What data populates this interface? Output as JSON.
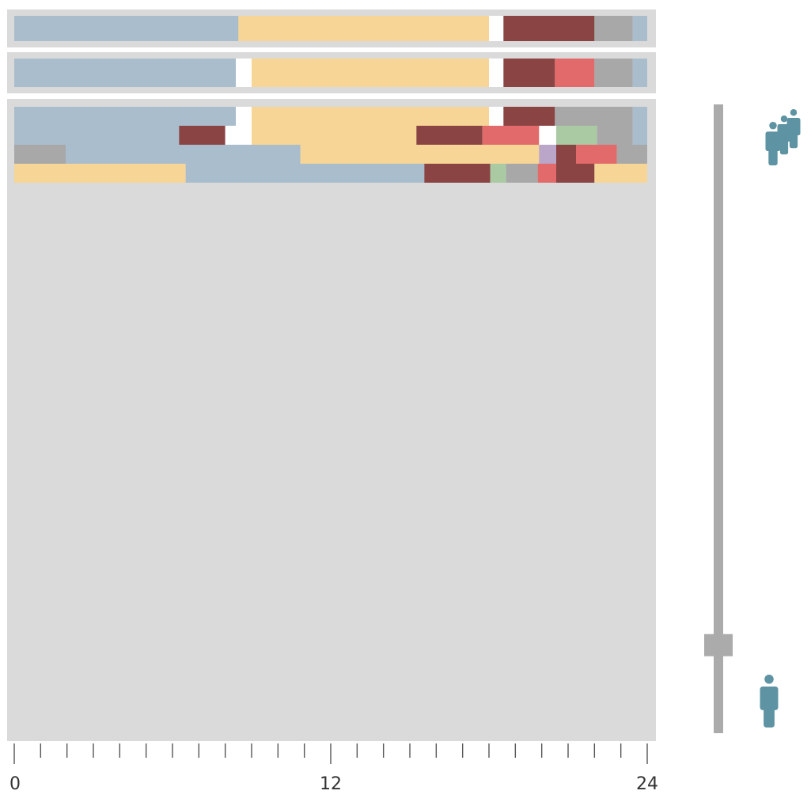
{
  "colors": {
    "blue": "#A9BDCC",
    "yellow": "#F7D596",
    "white": "#FFFFFF",
    "maroon": "#8A4444",
    "gray": "#A8A8A8",
    "red": "#E26A6A",
    "green": "#A9CAA3",
    "purple": "#B9A6C8",
    "panel_border": "#DADADA",
    "panel_bg": "#DADADA",
    "slider_track": "#ABABAB",
    "person_icon": "#5E93A3",
    "axis": "#555555"
  },
  "chart_data": {
    "type": "timeline",
    "xlim": [
      0,
      24
    ],
    "xticks": [
      0,
      12,
      24
    ],
    "tick_labels": [
      "0",
      "12",
      "24"
    ],
    "tick_step_hours": 1,
    "summary_rows": [
      [
        {
          "start": 0,
          "end": 8.5,
          "color": "blue"
        },
        {
          "start": 8.5,
          "end": 18,
          "color": "yellow"
        },
        {
          "start": 18,
          "end": 18.55,
          "color": "white"
        },
        {
          "start": 18.55,
          "end": 22,
          "color": "maroon"
        },
        {
          "start": 22,
          "end": 23.45,
          "color": "gray"
        },
        {
          "start": 23.45,
          "end": 24,
          "color": "blue"
        }
      ],
      [
        {
          "start": 0,
          "end": 8.4,
          "color": "blue"
        },
        {
          "start": 8.4,
          "end": 9,
          "color": "white"
        },
        {
          "start": 9,
          "end": 18,
          "color": "yellow"
        },
        {
          "start": 18,
          "end": 18.55,
          "color": "white"
        },
        {
          "start": 18.55,
          "end": 20.5,
          "color": "maroon"
        },
        {
          "start": 20.5,
          "end": 22,
          "color": "red"
        },
        {
          "start": 22,
          "end": 23.45,
          "color": "gray"
        },
        {
          "start": 23.45,
          "end": 24,
          "color": "blue"
        }
      ]
    ],
    "detail_rows": [
      [
        {
          "start": 0,
          "end": 8.4,
          "color": "blue"
        },
        {
          "start": 8.4,
          "end": 9,
          "color": "white"
        },
        {
          "start": 9,
          "end": 18,
          "color": "yellow"
        },
        {
          "start": 18,
          "end": 18.55,
          "color": "white"
        },
        {
          "start": 18.55,
          "end": 20.5,
          "color": "maroon"
        },
        {
          "start": 20.5,
          "end": 23.45,
          "color": "gray"
        },
        {
          "start": 23.45,
          "end": 24,
          "color": "blue"
        }
      ],
      [
        {
          "start": 0,
          "end": 6.25,
          "color": "blue"
        },
        {
          "start": 6.25,
          "end": 8,
          "color": "maroon"
        },
        {
          "start": 8,
          "end": 9,
          "color": "white"
        },
        {
          "start": 9,
          "end": 15.25,
          "color": "yellow"
        },
        {
          "start": 15.25,
          "end": 17.75,
          "color": "maroon"
        },
        {
          "start": 17.75,
          "end": 19.9,
          "color": "red"
        },
        {
          "start": 19.9,
          "end": 20.55,
          "color": "white"
        },
        {
          "start": 20.55,
          "end": 22.1,
          "color": "green"
        },
        {
          "start": 22.1,
          "end": 23.45,
          "color": "gray"
        },
        {
          "start": 23.45,
          "end": 24,
          "color": "blue"
        }
      ],
      [
        {
          "start": 0,
          "end": 1.95,
          "color": "gray"
        },
        {
          "start": 1.95,
          "end": 10.85,
          "color": "blue"
        },
        {
          "start": 10.85,
          "end": 19.9,
          "color": "yellow"
        },
        {
          "start": 19.9,
          "end": 20.55,
          "color": "purple"
        },
        {
          "start": 20.55,
          "end": 21.3,
          "color": "maroon"
        },
        {
          "start": 21.3,
          "end": 22.85,
          "color": "red"
        },
        {
          "start": 22.85,
          "end": 24,
          "color": "gray"
        }
      ],
      [
        {
          "start": 0,
          "end": 6.5,
          "color": "yellow"
        },
        {
          "start": 6.5,
          "end": 15.55,
          "color": "blue"
        },
        {
          "start": 15.55,
          "end": 18.05,
          "color": "maroon"
        },
        {
          "start": 18.05,
          "end": 18.65,
          "color": "green"
        },
        {
          "start": 18.65,
          "end": 19.85,
          "color": "gray"
        },
        {
          "start": 19.85,
          "end": 20.55,
          "color": "red"
        },
        {
          "start": 20.55,
          "end": 22,
          "color": "maroon"
        },
        {
          "start": 22,
          "end": 24,
          "color": "yellow"
        }
      ]
    ]
  },
  "slider": {
    "value_fraction": 0.14,
    "top_icon": "group-of-people-icon",
    "bottom_icon": "single-person-icon"
  }
}
